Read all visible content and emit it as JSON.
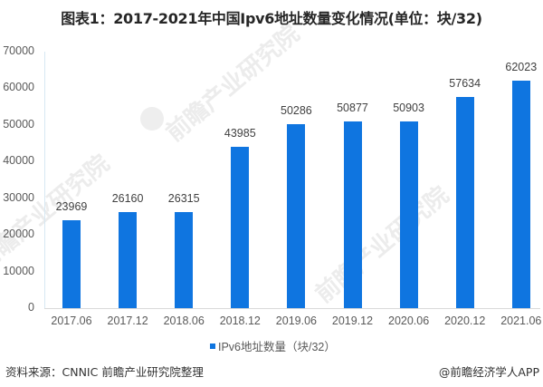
{
  "title": "图表1：2017-2021年中国Ipv6地址数量变化情况(单位：块/32)",
  "chart_data": {
    "type": "bar",
    "title": "图表1：2017-2021年中国Ipv6地址数量变化情况(单位：块/32)",
    "categories": [
      "2017.06",
      "2017.12",
      "2018.06",
      "2018.12",
      "2019.06",
      "2019.12",
      "2020.06",
      "2020.12",
      "2021.06"
    ],
    "series": [
      {
        "name": "IPv6地址数量（块/32）",
        "values": [
          23969,
          26160,
          26315,
          43985,
          50286,
          50877,
          50903,
          57634,
          62023
        ],
        "color": "#0f75e0"
      }
    ],
    "xlabel": "",
    "ylabel": "",
    "ylim": [
      0,
      70000
    ],
    "yticks": [
      "0",
      "10000",
      "20000",
      "30000",
      "40000",
      "50000",
      "60000",
      "70000"
    ],
    "grid": false,
    "legend_position": "bottom",
    "data_labels": true
  },
  "legend": {
    "label": "IPv6地址数量（块/32）"
  },
  "footer": {
    "source": "资料来源：CNNIC 前瞻产业研究院整理",
    "credit": "@前瞻经济学人APP"
  },
  "watermark": {
    "text": "前瞻产业研究院"
  }
}
